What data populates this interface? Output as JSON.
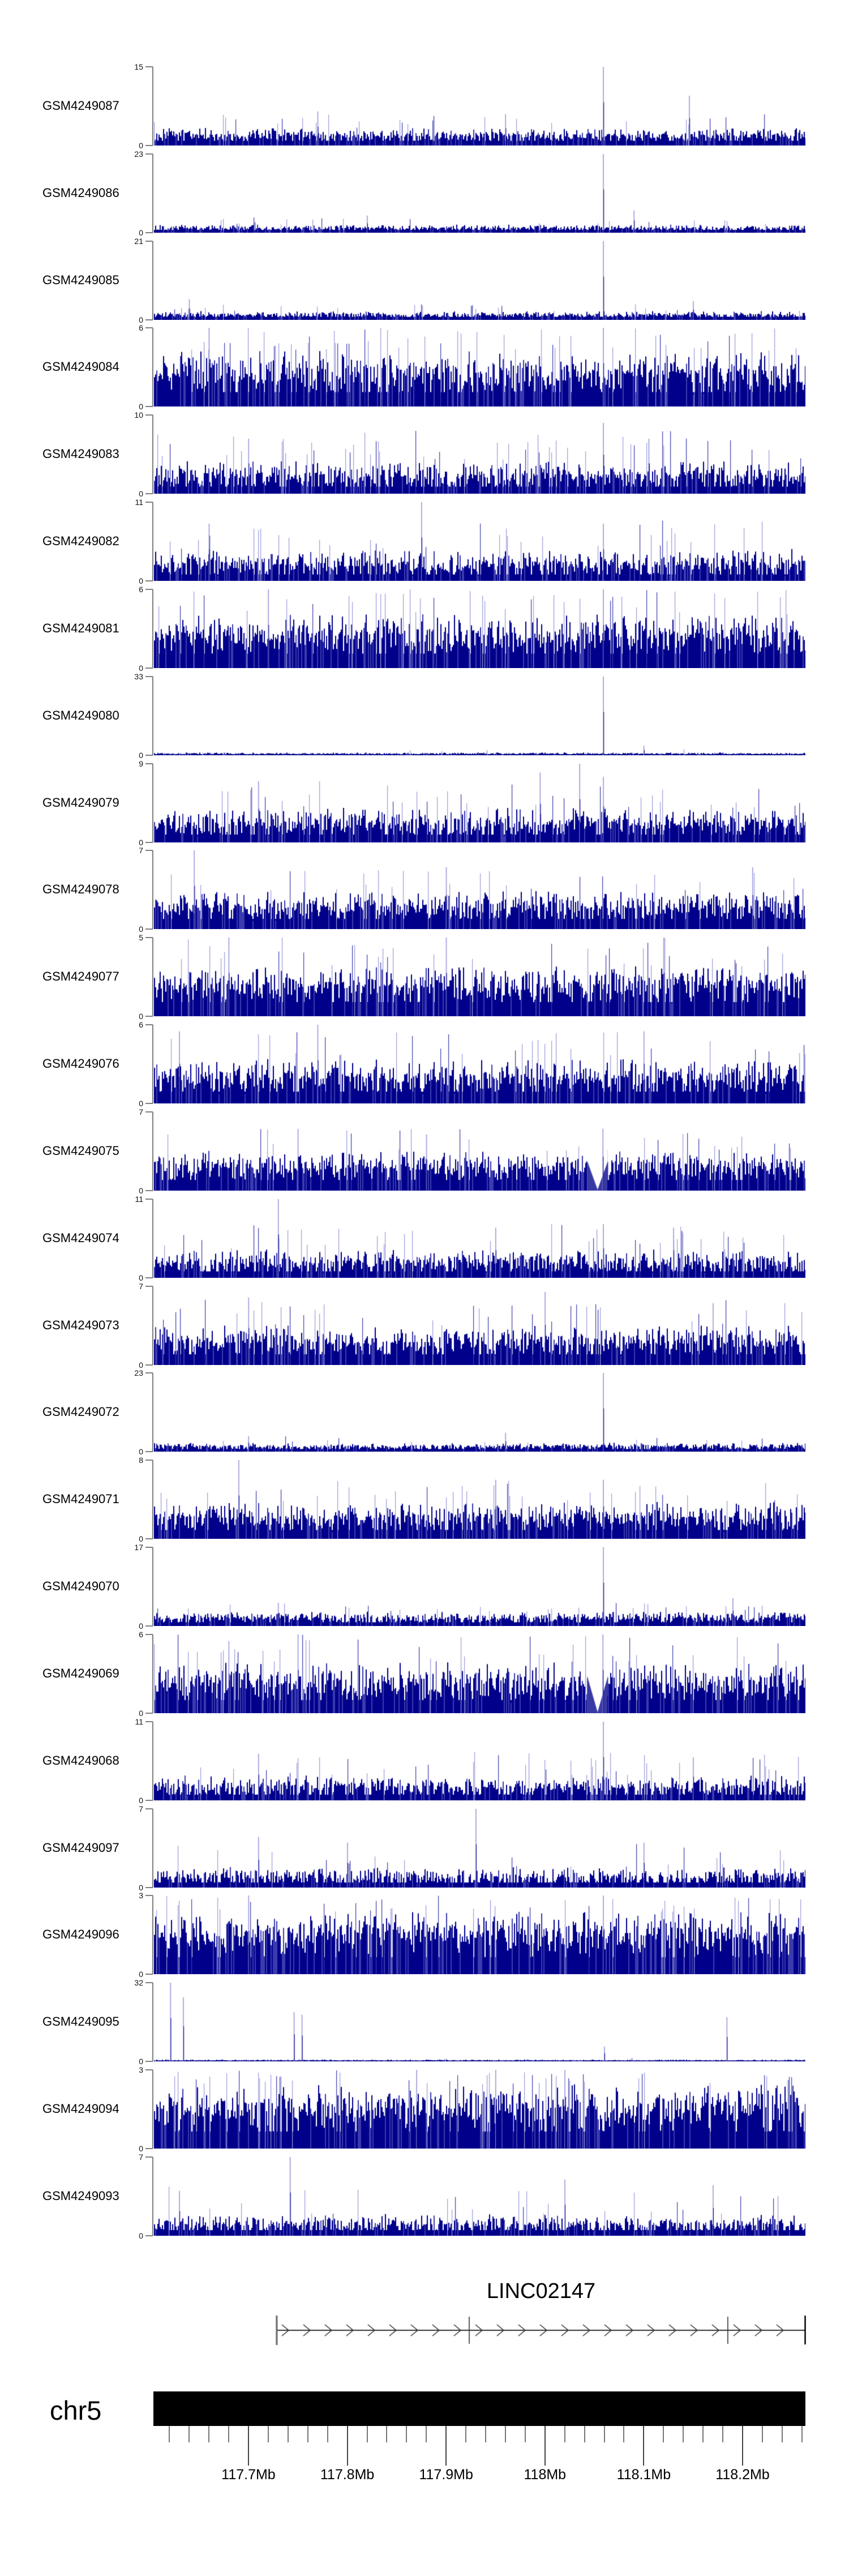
{
  "figure": {
    "background": "#ffffff",
    "signal_color": "#00008B",
    "signal_mid_color": "#3b3bae",
    "signal_light_color": "#9a99d9",
    "axis_color": "#7f7f7f",
    "zero_label": "0"
  },
  "chart_data": {
    "type": "bar",
    "title": "",
    "region": {
      "chromosome": "chr5",
      "start_mb": 117.604,
      "end_mb": 118.264
    },
    "x_ticks": [
      {
        "mb": 117.7,
        "label": "117.7Mb"
      },
      {
        "mb": 117.8,
        "label": "117.8Mb"
      },
      {
        "mb": 117.9,
        "label": "117.9Mb"
      },
      {
        "mb": 118.0,
        "label": "118Mb"
      },
      {
        "mb": 118.1,
        "label": "118.1Mb"
      },
      {
        "mb": 118.2,
        "label": "118.2Mb"
      }
    ],
    "x_minor_ticks": {
      "start_mb": 117.62,
      "end_mb": 118.26,
      "step_mb": 0.02
    },
    "gene": {
      "name": "LINC02147",
      "strand": "+",
      "start_mb": 117.7286,
      "end_mb": 118.2636,
      "exon_boundaries_mb": [
        117.9234,
        118.185
      ]
    },
    "tracks": [
      {
        "label": "GSM4249087",
        "ymax": 15,
        "band": 0.9,
        "mean": 1.9,
        "sd": 0.9,
        "density": 0.97,
        "spike_prob": 0.07,
        "spike_max": 6,
        "seed": 8020,
        "peaks": [
          {
            "mb": 118.059,
            "value": 15
          },
          {
            "mb": 118.146,
            "value": 9.5
          },
          {
            "mb": 117.77,
            "value": 6.5
          },
          {
            "mb": 117.96,
            "value": 6
          }
        ]
      },
      {
        "label": "GSM4249086",
        "ymax": 23,
        "band": 0.8,
        "mean": 1.4,
        "sd": 0.6,
        "density": 0.95,
        "spike_prob": 0.05,
        "spike_max": 4.5,
        "seed": 15939,
        "peaks": [
          {
            "mb": 118.059,
            "value": 23
          },
          {
            "mb": 118.09,
            "value": 6.5
          },
          {
            "mb": 117.82,
            "value": 5
          }
        ]
      },
      {
        "label": "GSM4249085",
        "ymax": 21,
        "band": 0.8,
        "mean": 1.4,
        "sd": 0.6,
        "density": 0.95,
        "spike_prob": 0.06,
        "spike_max": 4.2,
        "seed": 23858,
        "peaks": [
          {
            "mb": 118.059,
            "value": 21
          },
          {
            "mb": 117.64,
            "value": 5.5
          },
          {
            "mb": 118.15,
            "value": 5
          }
        ]
      },
      {
        "label": "GSM4249084",
        "ymax": 6,
        "band": 1.1,
        "mean": 2.5,
        "sd": 1.1,
        "density": 1,
        "spike_prob": 0.14,
        "spike_max": 6,
        "seed": 31777,
        "peaks": [
          {
            "mb": 118.059,
            "value": 6
          },
          {
            "mb": 117.66,
            "value": 6
          }
        ]
      },
      {
        "label": "GSM4249083",
        "ymax": 10,
        "band": 0.9,
        "mean": 2.3,
        "sd": 1.2,
        "density": 0.97,
        "spike_prob": 0.11,
        "spike_max": 8,
        "seed": 39696,
        "peaks": [
          {
            "mb": 118.059,
            "value": 9
          },
          {
            "mb": 118.105,
            "value": 7
          },
          {
            "mb": 117.7,
            "value": 7
          }
        ]
      },
      {
        "label": "GSM4249082",
        "ymax": 11,
        "band": 0.9,
        "mean": 2.4,
        "sd": 1.3,
        "density": 0.97,
        "spike_prob": 0.1,
        "spike_max": 8.5,
        "seed": 47615,
        "peaks": [
          {
            "mb": 117.875,
            "value": 11
          },
          {
            "mb": 118.059,
            "value": 8
          },
          {
            "mb": 117.66,
            "value": 8
          }
        ]
      },
      {
        "label": "GSM4249081",
        "ymax": 6,
        "band": 1.1,
        "mean": 2.5,
        "sd": 1.0,
        "density": 1,
        "spike_prob": 0.13,
        "spike_max": 6,
        "seed": 55534,
        "peaks": [
          {
            "mb": 117.72,
            "value": 6
          },
          {
            "mb": 118.059,
            "value": 6
          }
        ]
      },
      {
        "label": "GSM4249080",
        "ymax": 33,
        "band": 0.45,
        "mean": 0.7,
        "sd": 0.3,
        "density": 0.9,
        "spike_prob": 0.012,
        "spike_max": 2.5,
        "seed": 63453,
        "peaks": [
          {
            "mb": 118.059,
            "value": 33
          },
          {
            "mb": 118.1,
            "value": 4
          }
        ]
      },
      {
        "label": "GSM4249079",
        "ymax": 9,
        "band": 0.9,
        "mean": 2.2,
        "sd": 1.1,
        "density": 0.97,
        "spike_prob": 0.1,
        "spike_max": 7,
        "seed": 71372,
        "peaks": [
          {
            "mb": 118.035,
            "value": 9
          },
          {
            "mb": 117.995,
            "value": 8
          },
          {
            "mb": 118.059,
            "value": 7.5
          },
          {
            "mb": 117.71,
            "value": 7
          }
        ]
      },
      {
        "label": "GSM4249078",
        "ymax": 7,
        "band": 0.9,
        "mean": 2.0,
        "sd": 0.9,
        "density": 0.97,
        "spike_prob": 0.1,
        "spike_max": 5.5,
        "seed": 79291,
        "peaks": [
          {
            "mb": 117.645,
            "value": 7
          },
          {
            "mb": 118.21,
            "value": 5.5
          },
          {
            "mb": 117.9,
            "value": 5.5
          }
        ]
      },
      {
        "label": "GSM4249077",
        "ymax": 5,
        "band": 0.9,
        "mean": 1.9,
        "sd": 0.8,
        "density": 1,
        "spike_prob": 0.12,
        "spike_max": 5,
        "seed": 87210,
        "peaks": [
          {
            "mb": 117.9,
            "value": 5
          },
          {
            "mb": 117.68,
            "value": 5
          },
          {
            "mb": 118.12,
            "value": 5
          }
        ]
      },
      {
        "label": "GSM4249076",
        "ymax": 6,
        "band": 0.9,
        "mean": 2.0,
        "sd": 0.9,
        "density": 0.98,
        "spike_prob": 0.11,
        "spike_max": 5.5,
        "seed": 95129,
        "peaks": [
          {
            "mb": 117.77,
            "value": 6
          },
          {
            "mb": 118.1,
            "value": 5.5
          },
          {
            "mb": 117.63,
            "value": 5.5
          }
        ]
      },
      {
        "label": "GSM4249075",
        "ymax": 7,
        "band": 0.95,
        "mean": 2.1,
        "sd": 0.9,
        "density": 0.98,
        "spike_prob": 0.1,
        "spike_max": 5.5,
        "seed": 103048,
        "notch_mb": 118.053,
        "peaks": [
          {
            "mb": 118.0585,
            "value": 5.5
          },
          {
            "mb": 117.75,
            "value": 5.5
          },
          {
            "mb": 117.88,
            "value": 5
          }
        ]
      },
      {
        "label": "GSM4249074",
        "ymax": 11,
        "band": 0.9,
        "mean": 2.2,
        "sd": 1.1,
        "density": 0.96,
        "spike_prob": 0.09,
        "spike_max": 7.5,
        "seed": 110967,
        "peaks": [
          {
            "mb": 117.73,
            "value": 11
          },
          {
            "mb": 118.059,
            "value": 7.5
          },
          {
            "mb": 118.13,
            "value": 7
          },
          {
            "mb": 117.95,
            "value": 7
          }
        ]
      },
      {
        "label": "GSM4249073",
        "ymax": 7,
        "band": 0.95,
        "mean": 2.1,
        "sd": 0.9,
        "density": 0.98,
        "spike_prob": 0.1,
        "spike_max": 5.8,
        "seed": 118886,
        "peaks": [
          {
            "mb": 118.0,
            "value": 6.5
          },
          {
            "mb": 117.7,
            "value": 6
          },
          {
            "mb": 118.17,
            "value": 5.5
          }
        ]
      },
      {
        "label": "GSM4249072",
        "ymax": 23,
        "band": 0.75,
        "mean": 1.5,
        "sd": 0.7,
        "density": 0.95,
        "spike_prob": 0.05,
        "spike_max": 4.5,
        "seed": 126805,
        "peaks": [
          {
            "mb": 118.059,
            "value": 23
          },
          {
            "mb": 117.96,
            "value": 5.5
          },
          {
            "mb": 117.7,
            "value": 4.5
          }
        ]
      },
      {
        "label": "GSM4249071",
        "ymax": 8,
        "band": 0.9,
        "mean": 2.2,
        "sd": 1.0,
        "density": 0.98,
        "spike_prob": 0.11,
        "spike_max": 6.2,
        "seed": 134724,
        "peaks": [
          {
            "mb": 117.69,
            "value": 8
          },
          {
            "mb": 118.059,
            "value": 6
          },
          {
            "mb": 117.95,
            "value": 6
          }
        ]
      },
      {
        "label": "GSM4249070",
        "ymax": 17,
        "band": 0.8,
        "mean": 1.8,
        "sd": 0.8,
        "density": 0.95,
        "spike_prob": 0.07,
        "spike_max": 5,
        "seed": 142643,
        "peaks": [
          {
            "mb": 118.059,
            "value": 17
          },
          {
            "mb": 118.19,
            "value": 6
          },
          {
            "mb": 117.73,
            "value": 5
          }
        ]
      },
      {
        "label": "GSM4249069",
        "ymax": 6,
        "band": 1.0,
        "mean": 2.3,
        "sd": 1.0,
        "density": 1,
        "spike_prob": 0.12,
        "spike_max": 6,
        "seed": 150562,
        "notch_mb": 118.053,
        "peaks": [
          {
            "mb": 118.0585,
            "value": 6
          },
          {
            "mb": 117.75,
            "value": 6
          },
          {
            "mb": 117.68,
            "value": 5.5
          }
        ]
      },
      {
        "label": "GSM4249068",
        "ymax": 11,
        "band": 0.8,
        "mean": 1.9,
        "sd": 1.0,
        "density": 0.95,
        "spike_prob": 0.08,
        "spike_max": 6.8,
        "seed": 158481,
        "peaks": [
          {
            "mb": 118.059,
            "value": 11
          },
          {
            "mb": 117.71,
            "value": 6.5
          },
          {
            "mb": 118.15,
            "value": 6
          }
        ]
      },
      {
        "label": "GSM4249097",
        "ymax": 7,
        "band": 0.45,
        "mean": 0.95,
        "sd": 0.55,
        "density": 0.9,
        "spike_prob": 0.05,
        "spike_max": 4,
        "seed": 166400,
        "peaks": [
          {
            "mb": 117.93,
            "value": 7
          },
          {
            "mb": 117.71,
            "value": 4.5
          },
          {
            "mb": 118.1,
            "value": 4
          },
          {
            "mb": 117.8,
            "value": 4
          }
        ]
      },
      {
        "label": "GSM4249096",
        "ymax": 3,
        "band": 0.65,
        "mean": 1.5,
        "sd": 0.55,
        "density": 1,
        "spike_prob": 0.16,
        "spike_max": 3,
        "seed": 174319,
        "peaks": [
          {
            "mb": 118.059,
            "value": 3
          },
          {
            "mb": 117.7,
            "value": 3
          }
        ]
      },
      {
        "label": "GSM4249095",
        "ymax": 32,
        "band": 0.28,
        "mean": 0.45,
        "sd": 0.2,
        "density": 0.85,
        "spike_prob": 0.008,
        "spike_max": 2.5,
        "seed": 182238,
        "peaks": [
          {
            "mb": 117.621,
            "value": 32
          },
          {
            "mb": 117.634,
            "value": 26
          },
          {
            "mb": 117.746,
            "value": 20
          },
          {
            "mb": 117.754,
            "value": 19
          },
          {
            "mb": 118.184,
            "value": 18
          },
          {
            "mb": 118.06,
            "value": 6
          }
        ]
      },
      {
        "label": "GSM4249094",
        "ymax": 3,
        "band": 0.65,
        "mean": 1.5,
        "sd": 0.6,
        "density": 1,
        "spike_prob": 0.16,
        "spike_max": 3,
        "seed": 190157,
        "peaks": [
          {
            "mb": 117.95,
            "value": 3
          },
          {
            "mb": 117.87,
            "value": 3
          },
          {
            "mb": 118.02,
            "value": 3
          }
        ]
      },
      {
        "label": "GSM4249093",
        "ymax": 7,
        "band": 0.5,
        "mean": 1.0,
        "sd": 0.6,
        "density": 0.92,
        "spike_prob": 0.06,
        "spike_max": 4.5,
        "seed": 198076,
        "peaks": [
          {
            "mb": 117.742,
            "value": 7
          },
          {
            "mb": 118.02,
            "value": 5
          },
          {
            "mb": 118.17,
            "value": 4.5
          },
          {
            "mb": 117.63,
            "value": 4
          }
        ]
      }
    ]
  }
}
